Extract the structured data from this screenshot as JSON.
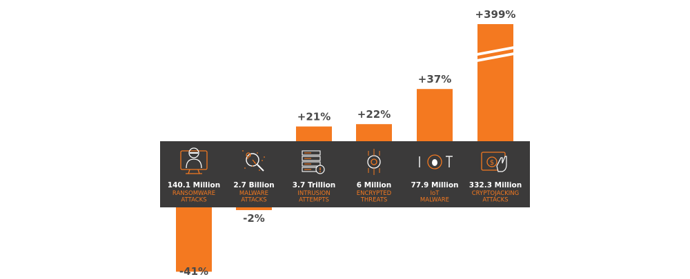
{
  "chart_data": {
    "type": "bar",
    "categories": [
      "RANSOMWARE ATTACKS",
      "MALWARE ATTACKS",
      "INTRUSION ATTEMPTS",
      "ENCRYPTED THREATS",
      "IoT MALWARE",
      "CRYPTOJACKING ATTACKS"
    ],
    "values": [
      -41,
      -2,
      21,
      22,
      37,
      399
    ],
    "value_labels": [
      "-41%",
      "-2%",
      "+21%",
      "+22%",
      "+37%",
      "+399%"
    ],
    "totals": [
      "140.1 Million",
      "2.7 Billion",
      "3.7 Trillion",
      "6 Million",
      "77.9 Million",
      "332.3 Million"
    ],
    "category_lines": [
      [
        "RANSOMWARE",
        "ATTACKS"
      ],
      [
        "MALWARE",
        "ATTACKS"
      ],
      [
        "INTRUSION",
        "ATTEMPTS"
      ],
      [
        "ENCRYPTED",
        "THREATS"
      ],
      [
        "IoT",
        "MALWARE"
      ],
      [
        "CRYPTOJACKING",
        "ATTACKS"
      ]
    ],
    "icons": [
      "hacker-monitor-icon",
      "malware-magnifier-icon",
      "server-alert-icon",
      "encrypted-lock-icon",
      "iot-bug-icon",
      "cryptojacking-hand-icon"
    ],
    "axis_break": "y-axis broken on largest bar",
    "title": "",
    "xlabel": "",
    "ylabel": ""
  },
  "colors": {
    "bar": "#f47920",
    "band": "#3b3a3a",
    "label": "#4a4a4a",
    "band_text": "#ffffff",
    "band_accent": "#f47920"
  }
}
